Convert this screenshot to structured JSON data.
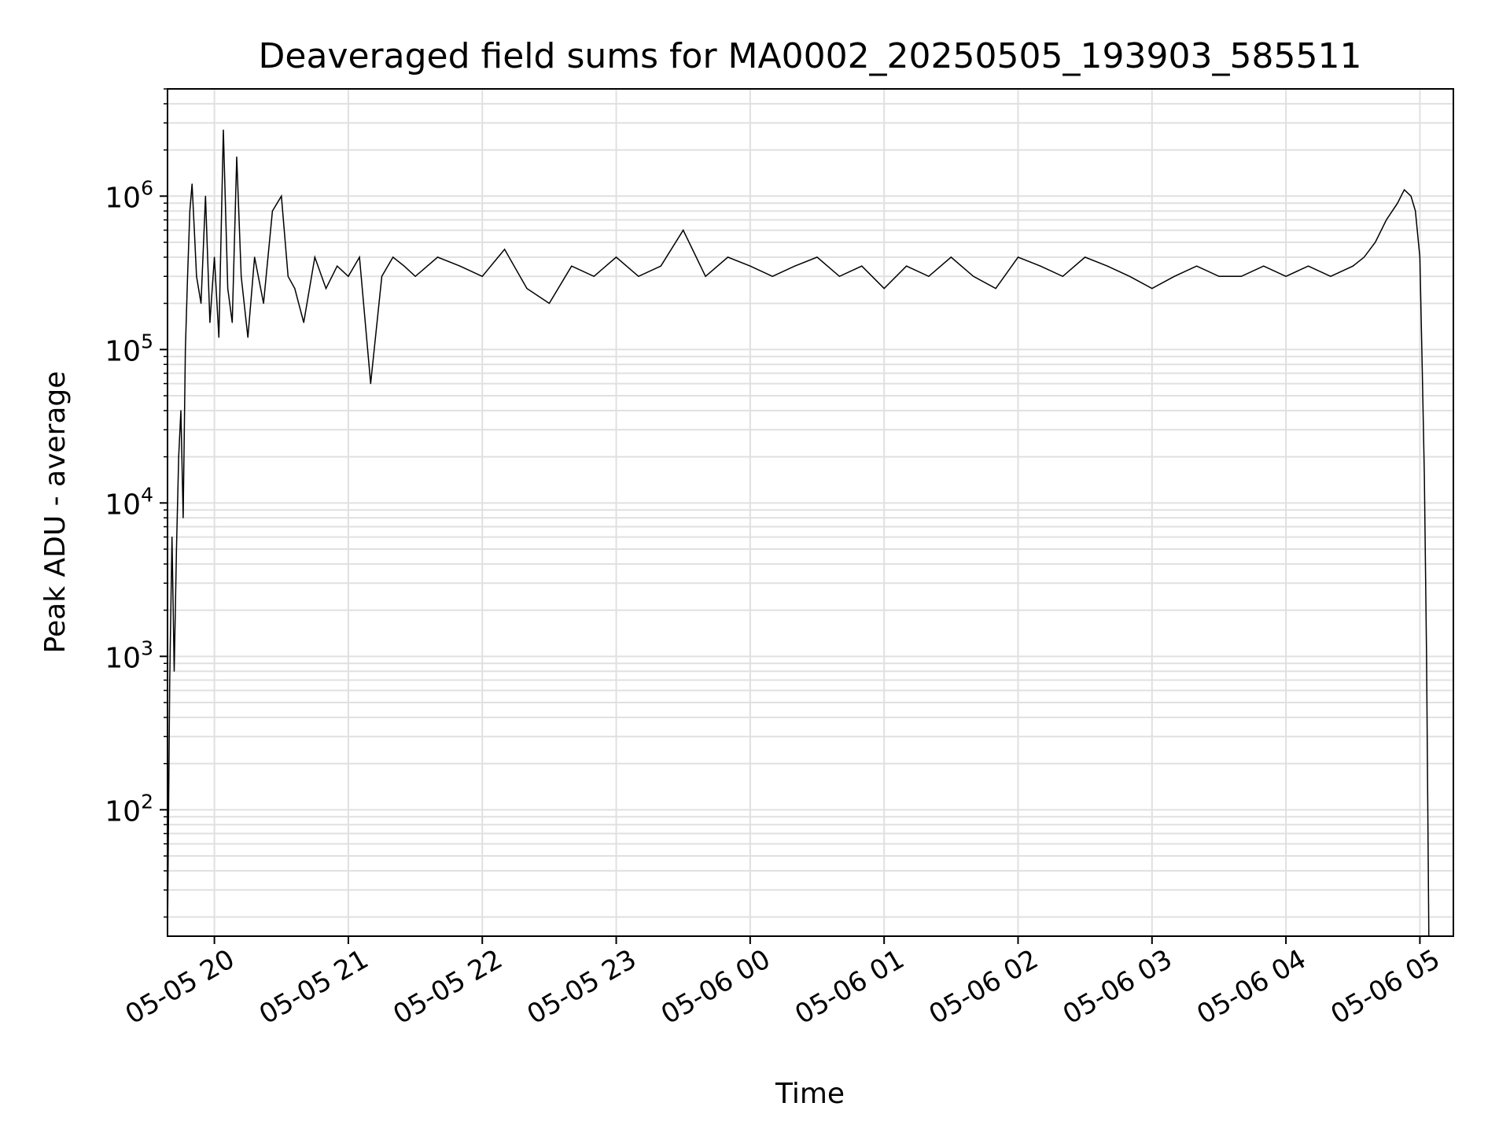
{
  "chart_data": {
    "type": "line",
    "title": "Deaveraged field sums for MA0002_20250505_193903_585511",
    "xlabel": "Time",
    "ylabel": "Peak ADU - average",
    "yscale": "log",
    "xlim": [
      "2025-05-05 19:39",
      "2025-05-06 05:15"
    ],
    "ylim": [
      15,
      5000000
    ],
    "grid": true,
    "grid_minor": true,
    "legend": "none",
    "line_color": "#000000",
    "grid_color": "#e0e0e0",
    "x_ticks": [
      {
        "value": "2025-05-05 20:00",
        "label": "05-05 20"
      },
      {
        "value": "2025-05-05 21:00",
        "label": "05-05 21"
      },
      {
        "value": "2025-05-05 22:00",
        "label": "05-05 22"
      },
      {
        "value": "2025-05-05 23:00",
        "label": "05-05 23"
      },
      {
        "value": "2025-05-06 00:00",
        "label": "05-06 00"
      },
      {
        "value": "2025-05-06 01:00",
        "label": "05-06 01"
      },
      {
        "value": "2025-05-06 02:00",
        "label": "05-06 02"
      },
      {
        "value": "2025-05-06 03:00",
        "label": "05-06 03"
      },
      {
        "value": "2025-05-06 04:00",
        "label": "05-06 04"
      },
      {
        "value": "2025-05-06 05:00",
        "label": "05-06 05"
      }
    ],
    "y_ticks": [
      {
        "value": 100,
        "base": "10",
        "exp": "2"
      },
      {
        "value": 1000,
        "base": "10",
        "exp": "3"
      },
      {
        "value": 10000,
        "base": "10",
        "exp": "4"
      },
      {
        "value": 100000,
        "base": "10",
        "exp": "5"
      },
      {
        "value": 1000000,
        "base": "10",
        "exp": "6"
      }
    ],
    "series": [
      {
        "x": [
          "2025-05-05 19:39",
          "2025-05-05 19:40",
          "2025-05-05 19:41",
          "2025-05-05 19:42",
          "2025-05-05 19:43",
          "2025-05-05 19:44",
          "2025-05-05 19:45",
          "2025-05-05 19:46",
          "2025-05-05 19:47",
          "2025-05-05 19:48",
          "2025-05-05 19:49",
          "2025-05-05 19:50",
          "2025-05-05 19:51",
          "2025-05-05 19:52",
          "2025-05-05 19:54",
          "2025-05-05 19:56",
          "2025-05-05 19:58",
          "2025-05-05 20:00",
          "2025-05-05 20:02",
          "2025-05-05 20:04",
          "2025-05-05 20:06",
          "2025-05-05 20:08",
          "2025-05-05 20:10",
          "2025-05-05 20:12",
          "2025-05-05 20:15",
          "2025-05-05 20:18",
          "2025-05-05 20:22",
          "2025-05-05 20:26",
          "2025-05-05 20:30",
          "2025-05-05 20:33",
          "2025-05-05 20:36",
          "2025-05-05 20:40",
          "2025-05-05 20:45",
          "2025-05-05 20:50",
          "2025-05-05 20:55",
          "2025-05-05 21:00",
          "2025-05-05 21:05",
          "2025-05-05 21:10",
          "2025-05-05 21:15",
          "2025-05-05 21:20",
          "2025-05-05 21:25",
          "2025-05-05 21:30",
          "2025-05-05 21:40",
          "2025-05-05 21:50",
          "2025-05-05 22:00",
          "2025-05-05 22:10",
          "2025-05-05 22:20",
          "2025-05-05 22:30",
          "2025-05-05 22:40",
          "2025-05-05 22:50",
          "2025-05-05 23:00",
          "2025-05-05 23:10",
          "2025-05-05 23:20",
          "2025-05-05 23:30",
          "2025-05-05 23:40",
          "2025-05-05 23:50",
          "2025-05-06 00:00",
          "2025-05-06 00:10",
          "2025-05-06 00:20",
          "2025-05-06 00:30",
          "2025-05-06 00:40",
          "2025-05-06 00:50",
          "2025-05-06 01:00",
          "2025-05-06 01:10",
          "2025-05-06 01:20",
          "2025-05-06 01:30",
          "2025-05-06 01:40",
          "2025-05-06 01:50",
          "2025-05-06 02:00",
          "2025-05-06 02:10",
          "2025-05-06 02:20",
          "2025-05-06 02:30",
          "2025-05-06 02:40",
          "2025-05-06 02:50",
          "2025-05-06 03:00",
          "2025-05-06 03:10",
          "2025-05-06 03:20",
          "2025-05-06 03:30",
          "2025-05-06 03:40",
          "2025-05-06 03:50",
          "2025-05-06 04:00",
          "2025-05-06 04:10",
          "2025-05-06 04:20",
          "2025-05-06 04:30",
          "2025-05-06 04:35",
          "2025-05-06 04:40",
          "2025-05-06 04:45",
          "2025-05-06 04:50",
          "2025-05-06 04:53",
          "2025-05-06 04:56",
          "2025-05-06 04:58",
          "2025-05-06 05:00",
          "2025-05-06 05:01",
          "2025-05-06 05:02",
          "2025-05-06 05:03",
          "2025-05-06 05:04"
        ],
        "y": [
          15,
          700,
          6000,
          800,
          5000,
          20000,
          40000,
          8000,
          100000,
          300000,
          800000,
          1200000,
          600000,
          300000,
          200000,
          1000000,
          150000,
          400000,
          120000,
          2700000,
          250000,
          150000,
          1800000,
          300000,
          120000,
          400000,
          200000,
          800000,
          1000000,
          300000,
          250000,
          150000,
          400000,
          250000,
          350000,
          300000,
          400000,
          60000,
          300000,
          400000,
          350000,
          300000,
          400000,
          350000,
          300000,
          450000,
          250000,
          200000,
          350000,
          300000,
          400000,
          300000,
          350000,
          600000,
          300000,
          400000,
          350000,
          300000,
          350000,
          400000,
          300000,
          350000,
          250000,
          350000,
          300000,
          400000,
          300000,
          250000,
          400000,
          350000,
          300000,
          400000,
          350000,
          300000,
          250000,
          300000,
          350000,
          300000,
          300000,
          350000,
          300000,
          350000,
          300000,
          350000,
          400000,
          500000,
          700000,
          900000,
          1100000,
          1000000,
          800000,
          400000,
          80000,
          15000,
          1000,
          15
        ]
      }
    ]
  }
}
